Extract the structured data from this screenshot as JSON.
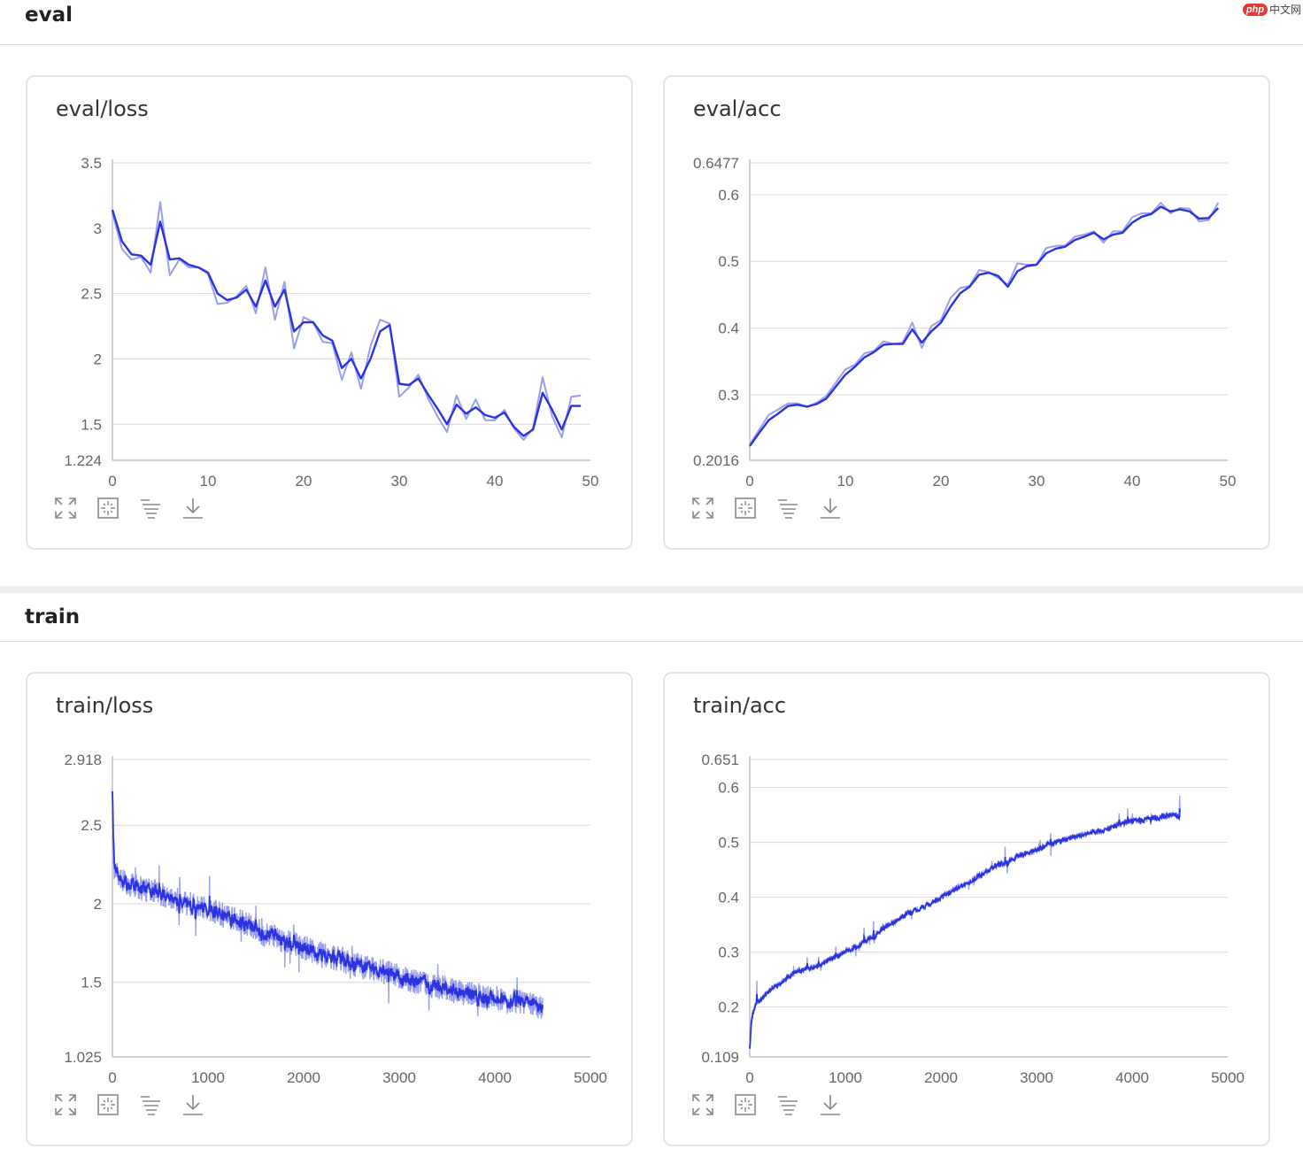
{
  "watermark": {
    "logo": "php",
    "text": "中文网"
  },
  "sections": [
    {
      "title": "eval"
    },
    {
      "title": "train"
    }
  ],
  "toolbar": {
    "icons": [
      "expand-icon",
      "fit-screen-icon",
      "filter-icon",
      "download-icon"
    ]
  },
  "colors": {
    "raw": "#9a9eec",
    "smooth": "#2b33e0",
    "grid": "#dadada",
    "axis": "#b5b5b5",
    "tick_text": "#666666"
  },
  "charts": [
    {
      "title": "eval/loss",
      "chart_data": {
        "type": "line",
        "xlim": [
          0,
          50
        ],
        "ylim": [
          1.224,
          3.5
        ],
        "x_ticks": [
          "0",
          "10",
          "20",
          "30",
          "40",
          "50"
        ],
        "y_ticks": [
          "1.224",
          "1.5",
          "2",
          "2.5",
          "3",
          "3.5"
        ],
        "grid": true,
        "series": [
          {
            "role": "raw",
            "x": [
              0,
              1,
              2,
              3,
              4,
              5,
              6,
              7,
              8,
              9,
              10,
              11,
              12,
              13,
              14,
              15,
              16,
              17,
              18,
              19,
              20,
              21,
              22,
              23,
              24,
              25,
              26,
              27,
              28,
              29,
              30,
              31,
              32,
              33,
              34,
              35,
              36,
              37,
              38,
              39,
              40,
              41,
              42,
              43,
              44,
              45,
              46,
              47,
              48,
              49
            ],
            "y": [
              3.12,
              2.84,
              2.76,
              2.78,
              2.66,
              3.2,
              2.64,
              2.76,
              2.7,
              2.7,
              2.65,
              2.42,
              2.43,
              2.48,
              2.56,
              2.35,
              2.7,
              2.3,
              2.59,
              2.08,
              2.32,
              2.28,
              2.13,
              2.12,
              1.84,
              2.05,
              1.77,
              2.1,
              2.3,
              2.27,
              1.71,
              1.78,
              1.88,
              1.7,
              1.56,
              1.44,
              1.72,
              1.54,
              1.69,
              1.53,
              1.53,
              1.61,
              1.47,
              1.38,
              1.47,
              1.86,
              1.56,
              1.4,
              1.71,
              1.72
            ]
          },
          {
            "role": "smoothed",
            "x": [
              0,
              1,
              2,
              3,
              4,
              5,
              6,
              7,
              8,
              9,
              10,
              11,
              12,
              13,
              14,
              15,
              16,
              17,
              18,
              19,
              20,
              21,
              22,
              23,
              24,
              25,
              26,
              27,
              28,
              29,
              30,
              31,
              32,
              33,
              34,
              35,
              36,
              37,
              38,
              39,
              40,
              41,
              42,
              43,
              44,
              45,
              46,
              47,
              48,
              49
            ],
            "y": [
              3.14,
              2.9,
              2.8,
              2.79,
              2.72,
              3.05,
              2.76,
              2.77,
              2.72,
              2.7,
              2.66,
              2.5,
              2.45,
              2.47,
              2.53,
              2.4,
              2.6,
              2.4,
              2.53,
              2.21,
              2.28,
              2.28,
              2.18,
              2.14,
              1.93,
              2.0,
              1.85,
              2.0,
              2.21,
              2.26,
              1.81,
              1.8,
              1.85,
              1.73,
              1.62,
              1.5,
              1.65,
              1.58,
              1.63,
              1.57,
              1.55,
              1.59,
              1.48,
              1.41,
              1.46,
              1.74,
              1.61,
              1.46,
              1.64,
              1.64
            ]
          }
        ]
      }
    },
    {
      "title": "eval/acc",
      "chart_data": {
        "type": "line",
        "xlim": [
          0,
          50
        ],
        "ylim": [
          0.2016,
          0.6477
        ],
        "x_ticks": [
          "0",
          "10",
          "20",
          "30",
          "40",
          "50"
        ],
        "y_ticks": [
          "0.2016",
          "0.3",
          "0.4",
          "0.5",
          "0.6",
          "0.6477"
        ],
        "grid": true,
        "series": [
          {
            "role": "raw",
            "x": [
              0,
              1,
              2,
              3,
              4,
              5,
              6,
              7,
              8,
              9,
              10,
              11,
              12,
              13,
              14,
              15,
              16,
              17,
              18,
              19,
              20,
              21,
              22,
              23,
              24,
              25,
              26,
              27,
              28,
              29,
              30,
              31,
              32,
              33,
              34,
              35,
              36,
              37,
              38,
              39,
              40,
              41,
              42,
              43,
              44,
              45,
              46,
              47,
              48,
              49
            ],
            "y": [
              0.225,
              0.248,
              0.27,
              0.278,
              0.287,
              0.287,
              0.282,
              0.288,
              0.298,
              0.318,
              0.338,
              0.345,
              0.362,
              0.366,
              0.38,
              0.376,
              0.378,
              0.408,
              0.37,
              0.403,
              0.412,
              0.445,
              0.46,
              0.463,
              0.487,
              0.484,
              0.475,
              0.465,
              0.497,
              0.495,
              0.495,
              0.52,
              0.523,
              0.524,
              0.537,
              0.54,
              0.545,
              0.528,
              0.545,
              0.545,
              0.566,
              0.572,
              0.572,
              0.588,
              0.572,
              0.58,
              0.579,
              0.56,
              0.562,
              0.588
            ]
          },
          {
            "role": "smoothed",
            "x": [
              0,
              1,
              2,
              3,
              4,
              5,
              6,
              7,
              8,
              9,
              10,
              11,
              12,
              13,
              14,
              15,
              16,
              17,
              18,
              19,
              20,
              21,
              22,
              23,
              24,
              25,
              26,
              27,
              28,
              29,
              30,
              31,
              32,
              33,
              34,
              35,
              36,
              37,
              38,
              39,
              40,
              41,
              42,
              43,
              44,
              45,
              46,
              47,
              48,
              49
            ],
            "y": [
              0.223,
              0.243,
              0.262,
              0.272,
              0.283,
              0.285,
              0.282,
              0.286,
              0.294,
              0.312,
              0.33,
              0.342,
              0.356,
              0.364,
              0.375,
              0.376,
              0.376,
              0.398,
              0.378,
              0.395,
              0.408,
              0.432,
              0.452,
              0.462,
              0.48,
              0.483,
              0.478,
              0.462,
              0.485,
              0.493,
              0.495,
              0.512,
              0.519,
              0.522,
              0.532,
              0.537,
              0.543,
              0.533,
              0.54,
              0.543,
              0.558,
              0.567,
              0.571,
              0.582,
              0.575,
              0.578,
              0.575,
              0.564,
              0.565,
              0.58
            ]
          }
        ]
      }
    },
    {
      "title": "train/loss",
      "chart_data": {
        "type": "line",
        "xlim": [
          0,
          5000
        ],
        "ylim": [
          1.025,
          2.918
        ],
        "x_ticks": [
          "0",
          "1000",
          "2000",
          "3000",
          "4000",
          "5000"
        ],
        "y_ticks": [
          "1.025",
          "1.5",
          "2",
          "2.5",
          "2.918"
        ],
        "grid": true,
        "series": [
          {
            "role": "smoothed",
            "x": [
              0,
              10,
              25,
              50,
              100,
              150,
              200,
              300,
              400,
              500,
              600,
              700,
              800,
              900,
              1000,
              1100,
              1200,
              1300,
              1400,
              1500,
              1600,
              1700,
              1800,
              1900,
              2000,
              2100,
              2200,
              2300,
              2400,
              2500,
              2600,
              2700,
              2800,
              2900,
              3000,
              3100,
              3200,
              3300,
              3400,
              3500,
              3600,
              3700,
              3800,
              3900,
              4000,
              4100,
              4200,
              4300,
              4400,
              4500
            ],
            "y": [
              2.64,
              2.3,
              2.22,
              2.18,
              2.15,
              2.13,
              2.12,
              2.1,
              2.08,
              2.06,
              2.04,
              2.02,
              2.0,
              1.98,
              1.96,
              1.94,
              1.92,
              1.9,
              1.87,
              1.84,
              1.8,
              1.79,
              1.76,
              1.74,
              1.72,
              1.7,
              1.68,
              1.66,
              1.64,
              1.62,
              1.6,
              1.59,
              1.57,
              1.56,
              1.54,
              1.52,
              1.5,
              1.48,
              1.47,
              1.46,
              1.44,
              1.43,
              1.42,
              1.41,
              1.4,
              1.39,
              1.38,
              1.37,
              1.35,
              1.34
            ]
          }
        ]
      }
    },
    {
      "title": "train/acc",
      "chart_data": {
        "type": "line",
        "xlim": [
          0,
          5000
        ],
        "ylim": [
          0.109,
          0.651
        ],
        "x_ticks": [
          "0",
          "1000",
          "2000",
          "3000",
          "4000",
          "5000"
        ],
        "y_ticks": [
          "0.109",
          "0.2",
          "0.3",
          "0.4",
          "0.5",
          "0.6",
          "0.651"
        ],
        "grid": true,
        "series": [
          {
            "role": "smoothed",
            "x": [
              0,
              10,
              30,
              60,
              100,
              150,
              200,
              300,
              400,
              500,
              600,
              700,
              800,
              900,
              1000,
              1100,
              1200,
              1300,
              1400,
              1500,
              1600,
              1700,
              1800,
              1900,
              2000,
              2100,
              2200,
              2300,
              2400,
              2500,
              2600,
              2700,
              2800,
              2900,
              3000,
              3100,
              3200,
              3300,
              3400,
              3500,
              3600,
              3700,
              3800,
              3900,
              4000,
              4100,
              4200,
              4300,
              4400,
              4500
            ],
            "y": [
              0.12,
              0.17,
              0.19,
              0.205,
              0.21,
              0.22,
              0.23,
              0.24,
              0.255,
              0.265,
              0.27,
              0.275,
              0.285,
              0.29,
              0.3,
              0.31,
              0.32,
              0.33,
              0.345,
              0.355,
              0.365,
              0.375,
              0.38,
              0.39,
              0.4,
              0.41,
              0.42,
              0.43,
              0.44,
              0.45,
              0.46,
              0.465,
              0.475,
              0.48,
              0.485,
              0.495,
              0.5,
              0.505,
              0.51,
              0.515,
              0.52,
              0.52,
              0.53,
              0.535,
              0.54,
              0.54,
              0.545,
              0.545,
              0.55,
              0.545
            ]
          }
        ]
      }
    }
  ]
}
